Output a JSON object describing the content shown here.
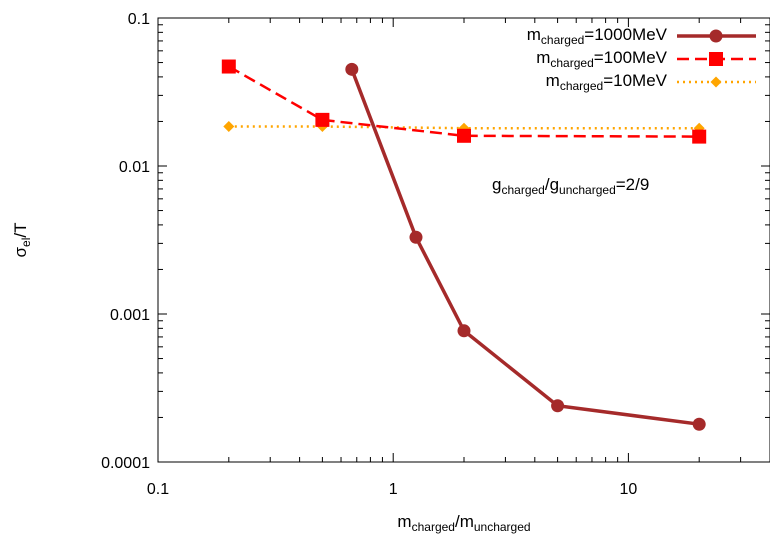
{
  "chart_data": {
    "type": "line",
    "x_scale": "log",
    "y_scale": "log",
    "xlim": [
      0.1,
      20
    ],
    "ylim": [
      0.0001,
      0.1
    ],
    "xlabel": {
      "base": "m",
      "sub": "charged",
      "mid": "/m",
      "sub2": "uncharged"
    },
    "ylabel": {
      "base": "σ",
      "sub": "el",
      "rest": "/T"
    },
    "x_ticks": [
      {
        "value": 0.1,
        "label": "0.1"
      },
      {
        "value": 1,
        "label": "1"
      },
      {
        "value": 10,
        "label": "10"
      }
    ],
    "y_ticks": [
      {
        "value": 0.1,
        "label": "0.1"
      },
      {
        "value": 0.01,
        "label": "0.01"
      },
      {
        "value": 0.001,
        "label": "0.001"
      },
      {
        "value": 0.0001,
        "label": "0.0001"
      }
    ],
    "annotation": {
      "p1": "g",
      "s1": "charged",
      "p2": "/g",
      "s2": "uncharged",
      "p3": "=2/9"
    },
    "legend_position": "top-right",
    "series": [
      {
        "legend": {
          "base": "m",
          "sub": "charged",
          "rest": "=1000MeV"
        },
        "color": "#a52a2a",
        "marker": "circle",
        "dash": "solid",
        "x": [
          0.667,
          1.25,
          2,
          5,
          20
        ],
        "y": [
          0.045,
          0.0033,
          0.00077,
          0.00024,
          0.00018
        ]
      },
      {
        "legend": {
          "base": "m",
          "sub": "charged",
          "rest": "=100MeV"
        },
        "color": "#ff0000",
        "marker": "square",
        "dash": "dashed",
        "x": [
          0.2,
          0.5,
          2,
          20
        ],
        "y": [
          0.047,
          0.0205,
          0.016,
          0.0158
        ]
      },
      {
        "legend": {
          "base": "m",
          "sub": "charged",
          "rest": "=10MeV"
        },
        "color": "#ffa500",
        "marker": "diamond",
        "dash": "dotted",
        "x": [
          0.2,
          0.5,
          2,
          20
        ],
        "y": [
          0.0185,
          0.0185,
          0.018,
          0.018
        ]
      }
    ]
  }
}
